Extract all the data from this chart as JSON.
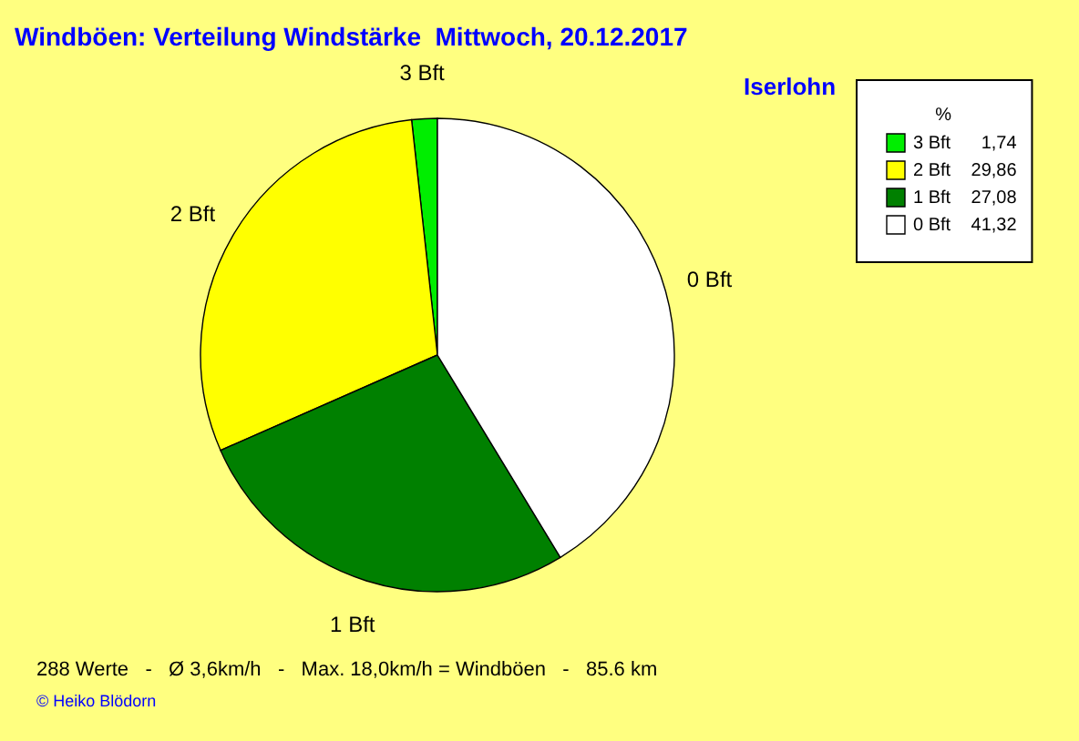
{
  "chart_data": {
    "type": "pie",
    "title": "Windböen: Verteilung Windstärke  Mittwoch, 20.12.2017",
    "subtitle": "Iserlohn",
    "legend_title": "%",
    "legend": "top right",
    "categories": [
      "3 Bft",
      "2 Bft",
      "1 Bft",
      "0 Bft"
    ],
    "values": [
      1.74,
      29.86,
      27.08,
      41.32
    ],
    "value_labels": [
      "1,74",
      "29,86",
      "27,08",
      "41,32"
    ],
    "colors": [
      "#00ee00",
      "#ffff00",
      "#008000",
      "#ffffff"
    ],
    "annotations": [
      "288 Werte   -   Ø 3,6km/h   -   Max. 18,0km/h = Windböen   -   85.6 km",
      "© Heiko Blödorn"
    ]
  }
}
